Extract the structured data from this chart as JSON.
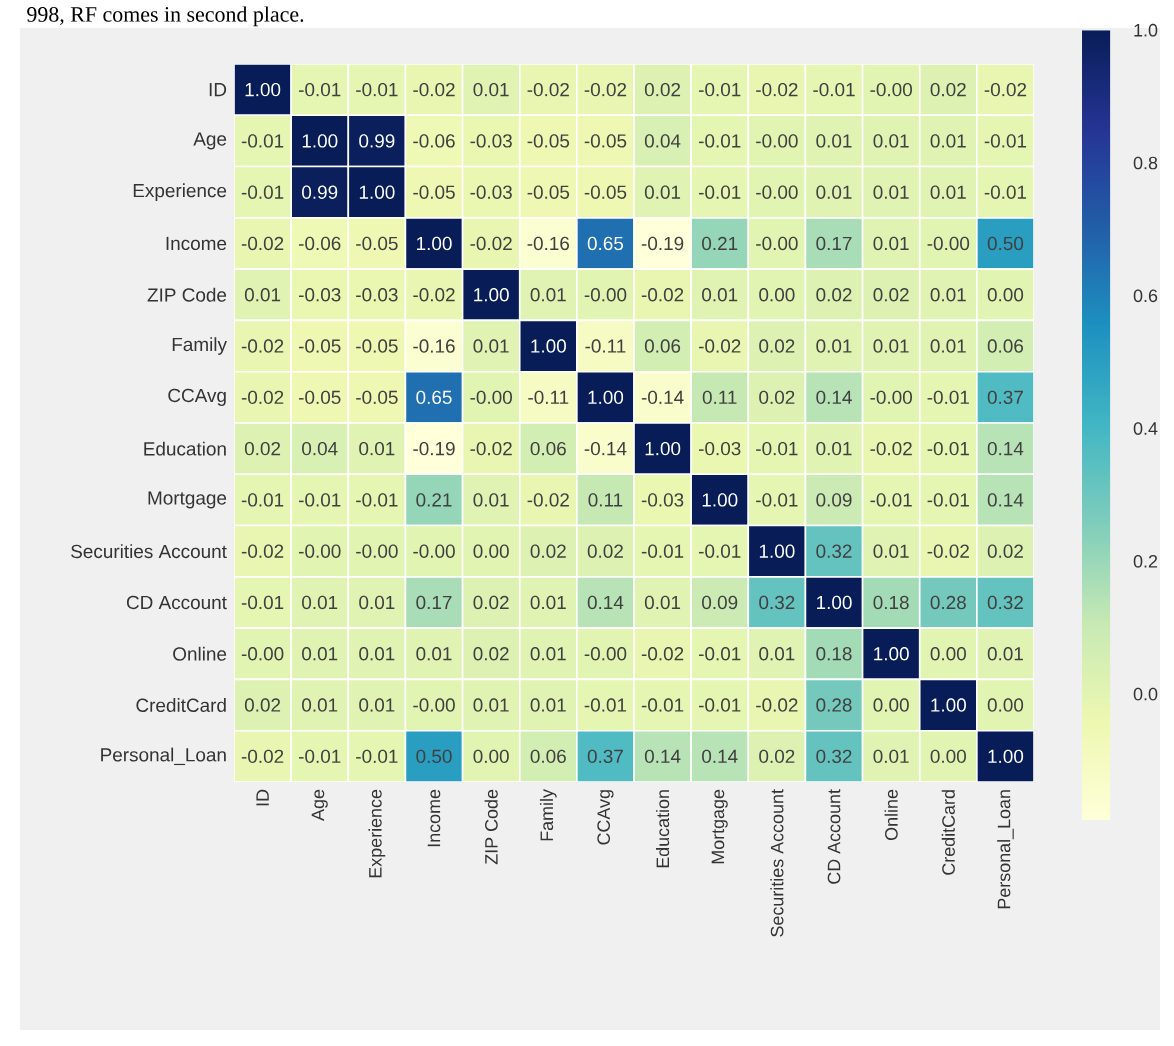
{
  "chart_data": {
    "type": "heatmap",
    "annotations": [
      "998, RF comes in second place."
    ],
    "categories": [
      "ID",
      "Age",
      "Experience",
      "Income",
      "ZIP Code",
      "Family",
      "CCAvg",
      "Education",
      "Mortgage",
      "Securities Account",
      "CD Account",
      "Online",
      "CreditCard",
      "Personal_Loan"
    ],
    "y_categories": [
      "ID",
      "Age",
      "Experience",
      "Income",
      "ZIP Code",
      "Family",
      "CCAvg",
      "Education",
      "Mortgage",
      "Securities Account",
      "CD Account",
      "Online",
      "CreditCard",
      "Personal_Loan"
    ],
    "cells": [
      [
        1.0,
        -0.01,
        -0.01,
        -0.02,
        0.01,
        -0.02,
        -0.02,
        0.02,
        -0.01,
        -0.02,
        -0.01,
        0.0,
        0.02,
        -0.02
      ],
      [
        -0.01,
        1.0,
        0.99,
        -0.06,
        -0.03,
        -0.05,
        -0.05,
        0.04,
        -0.01,
        0.0,
        0.01,
        0.01,
        0.01,
        -0.01
      ],
      [
        -0.01,
        0.99,
        1.0,
        -0.05,
        -0.03,
        -0.05,
        -0.05,
        0.01,
        -0.01,
        0.0,
        0.01,
        0.01,
        0.01,
        -0.01
      ],
      [
        -0.02,
        -0.06,
        -0.05,
        1.0,
        -0.02,
        -0.16,
        0.65,
        -0.19,
        0.21,
        0.0,
        0.17,
        0.01,
        0.0,
        0.5
      ],
      [
        0.01,
        -0.03,
        -0.03,
        -0.02,
        1.0,
        0.01,
        0.0,
        -0.02,
        0.01,
        0.0,
        0.02,
        0.02,
        0.01,
        0.0
      ],
      [
        -0.02,
        -0.05,
        -0.05,
        -0.16,
        0.01,
        1.0,
        -0.11,
        0.06,
        -0.02,
        0.02,
        0.01,
        0.01,
        0.01,
        0.06
      ],
      [
        -0.02,
        -0.05,
        -0.05,
        0.65,
        0.0,
        -0.11,
        1.0,
        -0.14,
        0.11,
        0.02,
        0.14,
        0.0,
        -0.01,
        0.37
      ],
      [
        0.02,
        0.04,
        0.01,
        -0.19,
        -0.02,
        0.06,
        -0.14,
        1.0,
        -0.03,
        -0.01,
        0.01,
        -0.02,
        -0.01,
        0.14
      ],
      [
        -0.01,
        -0.01,
        -0.01,
        0.21,
        0.01,
        -0.02,
        0.11,
        -0.03,
        1.0,
        -0.01,
        0.09,
        -0.01,
        -0.01,
        0.14
      ],
      [
        -0.02,
        0.0,
        0.0,
        0.0,
        0.0,
        0.02,
        0.02,
        -0.01,
        -0.01,
        1.0,
        0.32,
        0.01,
        -0.02,
        0.02
      ],
      [
        -0.01,
        0.01,
        0.01,
        0.17,
        0.02,
        0.01,
        0.14,
        0.01,
        0.09,
        0.32,
        1.0,
        0.18,
        0.28,
        0.32
      ],
      [
        0.0,
        0.01,
        0.01,
        0.01,
        0.02,
        0.01,
        0.0,
        -0.02,
        -0.01,
        0.01,
        0.18,
        1.0,
        0.0,
        0.01
      ],
      [
        0.02,
        0.01,
        0.01,
        0.0,
        0.01,
        0.01,
        -0.01,
        -0.01,
        -0.01,
        -0.02,
        0.28,
        0.0,
        1.0,
        0.0
      ],
      [
        -0.02,
        -0.01,
        -0.01,
        0.5,
        0.0,
        0.06,
        0.37,
        0.14,
        0.14,
        0.02,
        0.32,
        0.01,
        0.0,
        1.0
      ]
    ],
    "cell_labels": [
      [
        "1.00",
        "-0.01",
        "-0.01",
        "-0.02",
        "0.01",
        "-0.02",
        "-0.02",
        "0.02",
        "-0.01",
        "-0.02",
        "-0.01",
        "-0.00",
        "0.02",
        "-0.02"
      ],
      [
        "-0.01",
        "1.00",
        "0.99",
        "-0.06",
        "-0.03",
        "-0.05",
        "-0.05",
        "0.04",
        "-0.01",
        "-0.00",
        "0.01",
        "0.01",
        "0.01",
        "-0.01"
      ],
      [
        "-0.01",
        "0.99",
        "1.00",
        "-0.05",
        "-0.03",
        "-0.05",
        "-0.05",
        "0.01",
        "-0.01",
        "-0.00",
        "0.01",
        "0.01",
        "0.01",
        "-0.01"
      ],
      [
        "-0.02",
        "-0.06",
        "-0.05",
        "1.00",
        "-0.02",
        "-0.16",
        "0.65",
        "-0.19",
        "0.21",
        "-0.00",
        "0.17",
        "0.01",
        "-0.00",
        "0.50"
      ],
      [
        "0.01",
        "-0.03",
        "-0.03",
        "-0.02",
        "1.00",
        "0.01",
        "-0.00",
        "-0.02",
        "0.01",
        "0.00",
        "0.02",
        "0.02",
        "0.01",
        "0.00"
      ],
      [
        "-0.02",
        "-0.05",
        "-0.05",
        "-0.16",
        "0.01",
        "1.00",
        "-0.11",
        "0.06",
        "-0.02",
        "0.02",
        "0.01",
        "0.01",
        "0.01",
        "0.06"
      ],
      [
        "-0.02",
        "-0.05",
        "-0.05",
        "0.65",
        "-0.00",
        "-0.11",
        "1.00",
        "-0.14",
        "0.11",
        "0.02",
        "0.14",
        "-0.00",
        "-0.01",
        "0.37"
      ],
      [
        "0.02",
        "0.04",
        "0.01",
        "-0.19",
        "-0.02",
        "0.06",
        "-0.14",
        "1.00",
        "-0.03",
        "-0.01",
        "0.01",
        "-0.02",
        "-0.01",
        "0.14"
      ],
      [
        "-0.01",
        "-0.01",
        "-0.01",
        "0.21",
        "0.01",
        "-0.02",
        "0.11",
        "-0.03",
        "1.00",
        "-0.01",
        "0.09",
        "-0.01",
        "-0.01",
        "0.14"
      ],
      [
        "-0.02",
        "-0.00",
        "-0.00",
        "-0.00",
        "0.00",
        "0.02",
        "0.02",
        "-0.01",
        "-0.01",
        "1.00",
        "0.32",
        "0.01",
        "-0.02",
        "0.02"
      ],
      [
        "-0.01",
        "0.01",
        "0.01",
        "0.17",
        "0.02",
        "0.01",
        "0.14",
        "0.01",
        "0.09",
        "0.32",
        "1.00",
        "0.18",
        "0.28",
        "0.32"
      ],
      [
        "-0.00",
        "0.01",
        "0.01",
        "0.01",
        "0.02",
        "0.01",
        "-0.00",
        "-0.02",
        "-0.01",
        "0.01",
        "0.18",
        "1.00",
        "0.00",
        "0.01"
      ],
      [
        "0.02",
        "0.01",
        "0.01",
        "-0.00",
        "0.01",
        "0.01",
        "-0.01",
        "-0.01",
        "-0.01",
        "-0.02",
        "0.28",
        "0.00",
        "1.00",
        "0.00"
      ],
      [
        "-0.02",
        "-0.01",
        "-0.01",
        "0.50",
        "0.00",
        "0.06",
        "0.37",
        "0.14",
        "0.14",
        "0.02",
        "0.32",
        "0.01",
        "0.00",
        "1.00"
      ]
    ],
    "clim": [
      -0.19,
      1.0
    ],
    "cticks": [
      {
        "value": 0.0,
        "label": "0.0"
      },
      0.2,
      0.4,
      0.6,
      0.8,
      {
        "value": 1.0,
        "label": "1.0"
      }
    ]
  }
}
